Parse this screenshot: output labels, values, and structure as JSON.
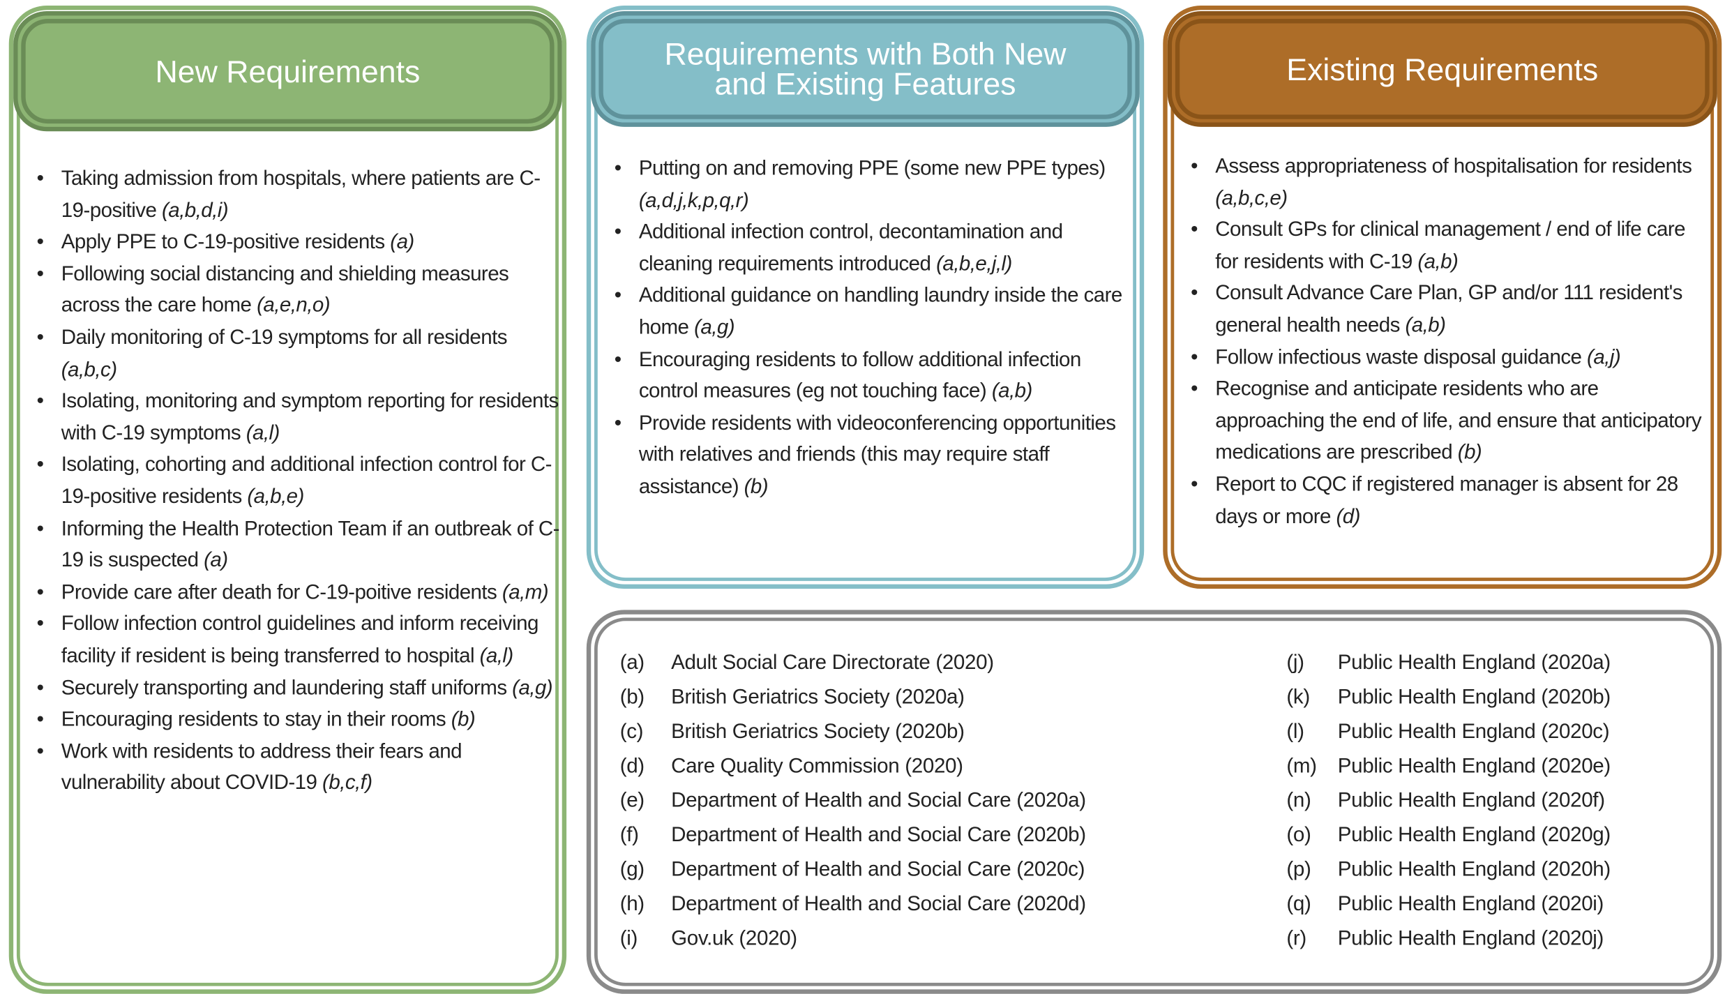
{
  "new": {
    "title": "New Requirements",
    "color": "#8db574",
    "border": "#6a8c56",
    "items": [
      {
        "text": "Taking admission from hospitals, where patients are C-19-positive",
        "cite": "(a,b,d,i)"
      },
      {
        "text": "Apply PPE to C-19-positive residents",
        "cite": "(a)"
      },
      {
        "text": "Following social distancing and shielding measures across the care home",
        "cite": "(a,e,n,o)"
      },
      {
        "text": "Daily monitoring of C-19 symptoms for all residents",
        "cite": "(a,b,c)"
      },
      {
        "text": "Isolating, monitoring and symptom reporting for residents with C-19 symptoms",
        "cite": "(a,l)"
      },
      {
        "text": "Isolating, cohorting and additional infection control for C-19-positive residents",
        "cite": "(a,b,e)"
      },
      {
        "text": "Informing the Health Protection Team if an outbreak of C-19 is suspected",
        "cite": "(a)"
      },
      {
        "text": "Provide care after death for C-19-poitive residents",
        "cite": "(a,m)"
      },
      {
        "text": "Follow infection control guidelines and inform receiving facility if resident is being transferred to hospital",
        "cite": "(a,l)"
      },
      {
        "text": "Securely transporting and laundering staff uniforms",
        "cite": "(a,g)"
      },
      {
        "text": "Encouraging residents to stay in their rooms",
        "cite": "(b)"
      },
      {
        "text": "Work with residents to address their fears and vulnerability about COVID-19",
        "cite": "(b,c,f)"
      }
    ]
  },
  "both": {
    "title_line1": "Requirements with Both New",
    "title_line2": "and Existing Features",
    "color": "#84bec8",
    "border": "#5f929b",
    "items": [
      {
        "text": "Putting on and removing PPE (some new PPE types)",
        "cite": "(a,d,j,k,p,q,r)"
      },
      {
        "text": "Additional infection control, decontamination and cleaning requirements introduced",
        "cite": "(a,b,e,j,l)"
      },
      {
        "text": "Additional guidance on handling laundry inside the care home",
        "cite": "(a,g)"
      },
      {
        "text": "Encouraging residents to follow additional infection control measures (eg not touching face)",
        "cite": "(a,b)"
      },
      {
        "text": "Provide residents with videoconferencing opportunities with relatives and friends (this may require staff assistance)",
        "cite": "(b)"
      }
    ]
  },
  "existing": {
    "title": "Existing Requirements",
    "color": "#ad6d28",
    "border": "#8a5418",
    "items": [
      {
        "text": "Assess appropriateness of hospitalisation for residents",
        "cite": "(a,b,c,e)"
      },
      {
        "text": "Consult GPs for clinical management / end of life care for residents with C-19",
        "cite": "(a,b)"
      },
      {
        "text": "Consult Advance Care Plan, GP and/or 111 resident's general health needs",
        "cite": "(a,b)"
      },
      {
        "text": "Follow infectious waste disposal guidance",
        "cite": "(a,j)"
      },
      {
        "text": "Recognise and anticipate residents who are approaching the end of life, and ensure that anticipatory medications are prescribed",
        "cite": "(b)"
      },
      {
        "text": "Report to CQC if registered manager is absent for 28 days or more",
        "cite": "(d)"
      }
    ]
  },
  "references": {
    "border": "#8a8a8a",
    "left": [
      {
        "key": "(a)",
        "source": "Adult Social Care Directorate (2020)"
      },
      {
        "key": "(b)",
        "source": "British Geriatrics Society (2020a)"
      },
      {
        "key": "(c)",
        "source": "British Geriatrics Society (2020b)"
      },
      {
        "key": "(d)",
        "source": "Care Quality Commission (2020)"
      },
      {
        "key": "(e)",
        "source": "Department of Health and Social Care (2020a)"
      },
      {
        "key": "(f)",
        "source": "Department of Health and Social Care (2020b)"
      },
      {
        "key": "(g)",
        "source": "Department of Health and Social Care (2020c)"
      },
      {
        "key": "(h)",
        "source": "Department of Health and Social Care (2020d)"
      },
      {
        "key": "(i)",
        "source": "Gov.uk (2020)"
      }
    ],
    "right": [
      {
        "key": "(j)",
        "source": "Public Health England (2020a)"
      },
      {
        "key": "(k)",
        "source": "Public Health England (2020b)"
      },
      {
        "key": "(l)",
        "source": "Public Health England (2020c)"
      },
      {
        "key": "(m)",
        "source": "Public Health England (2020e)"
      },
      {
        "key": "(n)",
        "source": "Public Health England (2020f)"
      },
      {
        "key": "(o)",
        "source": "Public Health England (2020g)"
      },
      {
        "key": "(p)",
        "source": "Public Health England (2020h)"
      },
      {
        "key": "(q)",
        "source": "Public Health England (2020i)"
      },
      {
        "key": "(r)",
        "source": "Public Health England (2020j)"
      }
    ]
  }
}
